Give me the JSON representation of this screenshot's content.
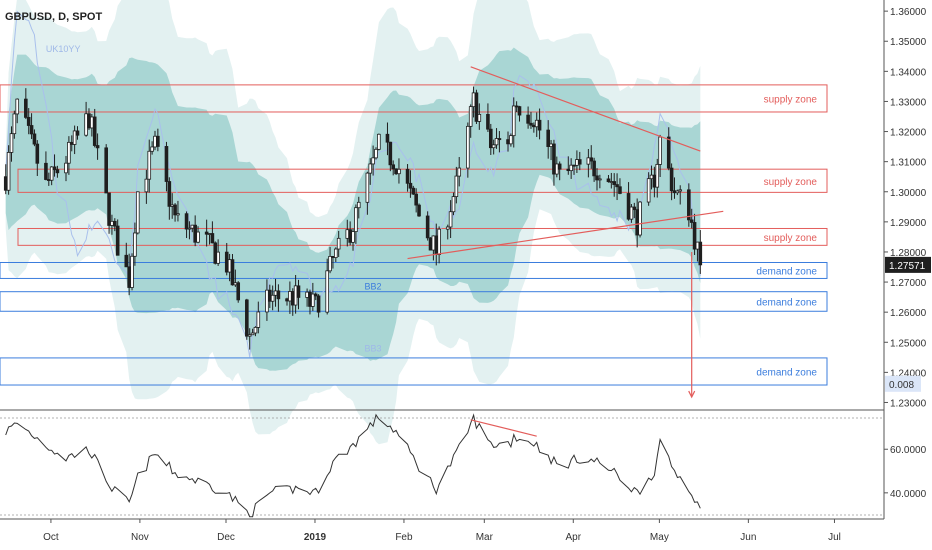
{
  "chart_data": {
    "type": "candlestick",
    "title": "GBPUSD, D, SPOT",
    "price_axis": {
      "ticks": [
        "1.36000",
        "1.35000",
        "1.34000",
        "1.33000",
        "1.32000",
        "1.31000",
        "1.30000",
        "1.29000",
        "1.28000",
        "1.27000",
        "1.26000",
        "1.25000",
        "1.24000",
        "1.23000"
      ],
      "range": [
        1.2275,
        1.3637
      ],
      "current_price_label": "1.27571",
      "current_price": 1.27571,
      "indicator_value_label": "0.008",
      "indicator_value_price": 1.2362
    },
    "oscillator_axis": {
      "ticks": [
        "60.0000",
        "40.0000"
      ],
      "range": [
        28.0,
        78.0
      ]
    },
    "time_axis": {
      "labels": [
        "Oct",
        "Nov",
        "Dec",
        "2019",
        "Feb",
        "Mar",
        "Apr",
        "May",
        "Jun",
        "Jul"
      ],
      "range": [
        "2018-09-15",
        "2019-07-20"
      ]
    },
    "zones": [
      {
        "label": "supply zone",
        "color": "#e35d5b",
        "top": 1.3355,
        "bottom": 1.3265
      },
      {
        "label": "supply zone",
        "color": "#e35d5b",
        "top": 1.3075,
        "bottom": 1.2998
      },
      {
        "label": "supply zone",
        "color": "#e35d5b",
        "top": 1.2878,
        "bottom": 1.2822
      },
      {
        "label": "demand zone",
        "color": "#3b7ddd",
        "top": 1.2765,
        "bottom": 1.2712
      },
      {
        "label": "demand zone",
        "color": "#3b7ddd",
        "top": 1.2668,
        "bottom": 1.2603
      },
      {
        "label": "demand zone",
        "color": "#3b7ddd",
        "top": 1.2448,
        "bottom": 1.2358
      }
    ],
    "series_labels": [
      {
        "text": "UK10YY",
        "date": "2018-10-01",
        "price": 1.3465,
        "color": "#9fb8e8"
      },
      {
        "text": "BB2",
        "date": "2019-01-20",
        "price": 1.2675,
        "color": "#3b7ddd"
      },
      {
        "text": "BB3",
        "date": "2019-01-20",
        "price": 1.247,
        "color": "#9fb8e8"
      }
    ],
    "trendlines": [
      {
        "from": [
          "2019-02-26",
          1.3415
        ],
        "to": [
          "2019-05-17",
          1.3135
        ],
        "color": "#e35d5b"
      },
      {
        "from": [
          "2019-02-04",
          1.2778
        ],
        "to": [
          "2019-05-25",
          1.2935
        ],
        "color": "#e35d5b"
      },
      {
        "from": [
          "2019-05-14",
          1.28
        ],
        "to": [
          "2019-05-14",
          1.2318
        ],
        "color": "#e35d5b",
        "arrow": true
      }
    ],
    "oscillator_divergence": {
      "from": [
        "2019-02-26",
        73.5
      ],
      "to": [
        "2019-03-21",
        66.0
      ],
      "color": "#e35d5b"
    },
    "colors": {
      "up": "#1f1f1f",
      "down": "#1f1f1f",
      "bb_outer": "#e3f1f1",
      "bb_inner": "#a9d6d4",
      "uk10yy": "#a9c0ec",
      "oscillator": "#333333",
      "current_price_bg": "#1f1f1f",
      "indicator_bg": "#dbe6f8"
    },
    "anchors": [
      [
        "2018-09-17",
        1.305,
        68
      ],
      [
        "2018-09-21",
        1.329,
        72
      ],
      [
        "2018-10-01",
        1.302,
        62
      ],
      [
        "2018-10-08",
        1.311,
        56
      ],
      [
        "2018-10-16",
        1.325,
        60
      ],
      [
        "2018-10-24",
        1.288,
        42
      ],
      [
        "2018-10-30",
        1.271,
        35
      ],
      [
        "2018-11-02",
        1.3,
        47
      ],
      [
        "2018-11-08",
        1.315,
        58
      ],
      [
        "2018-11-15",
        1.291,
        49
      ],
      [
        "2018-11-26",
        1.283,
        44
      ],
      [
        "2018-12-03",
        1.276,
        40
      ],
      [
        "2018-12-11",
        1.252,
        30
      ],
      [
        "2018-12-18",
        1.265,
        40
      ],
      [
        "2018-12-27",
        1.265,
        42
      ],
      [
        "2019-01-03",
        1.262,
        40
      ],
      [
        "2019-01-09",
        1.277,
        54
      ],
      [
        "2019-01-16",
        1.289,
        62
      ],
      [
        "2019-01-25",
        1.315,
        75
      ],
      [
        "2019-01-31",
        1.31,
        68
      ],
      [
        "2019-02-08",
        1.292,
        52
      ],
      [
        "2019-02-14",
        1.28,
        42
      ],
      [
        "2019-02-22",
        1.305,
        60
      ],
      [
        "2019-02-27",
        1.33,
        74
      ],
      [
        "2019-03-05",
        1.315,
        62
      ],
      [
        "2019-03-12",
        1.318,
        63
      ],
      [
        "2019-03-13",
        1.33,
        66
      ],
      [
        "2019-03-20",
        1.325,
        63
      ],
      [
        "2019-03-29",
        1.305,
        52
      ],
      [
        "2019-04-05",
        1.308,
        56
      ],
      [
        "2019-04-12",
        1.308,
        54
      ],
      [
        "2019-04-18",
        1.302,
        48
      ],
      [
        "2019-04-25",
        1.29,
        40
      ],
      [
        "2019-05-01",
        1.305,
        50
      ],
      [
        "2019-05-03",
        1.317,
        62
      ],
      [
        "2019-05-08",
        1.3,
        50
      ],
      [
        "2019-05-13",
        1.294,
        43
      ],
      [
        "2019-05-17",
        1.2757,
        32
      ]
    ]
  }
}
